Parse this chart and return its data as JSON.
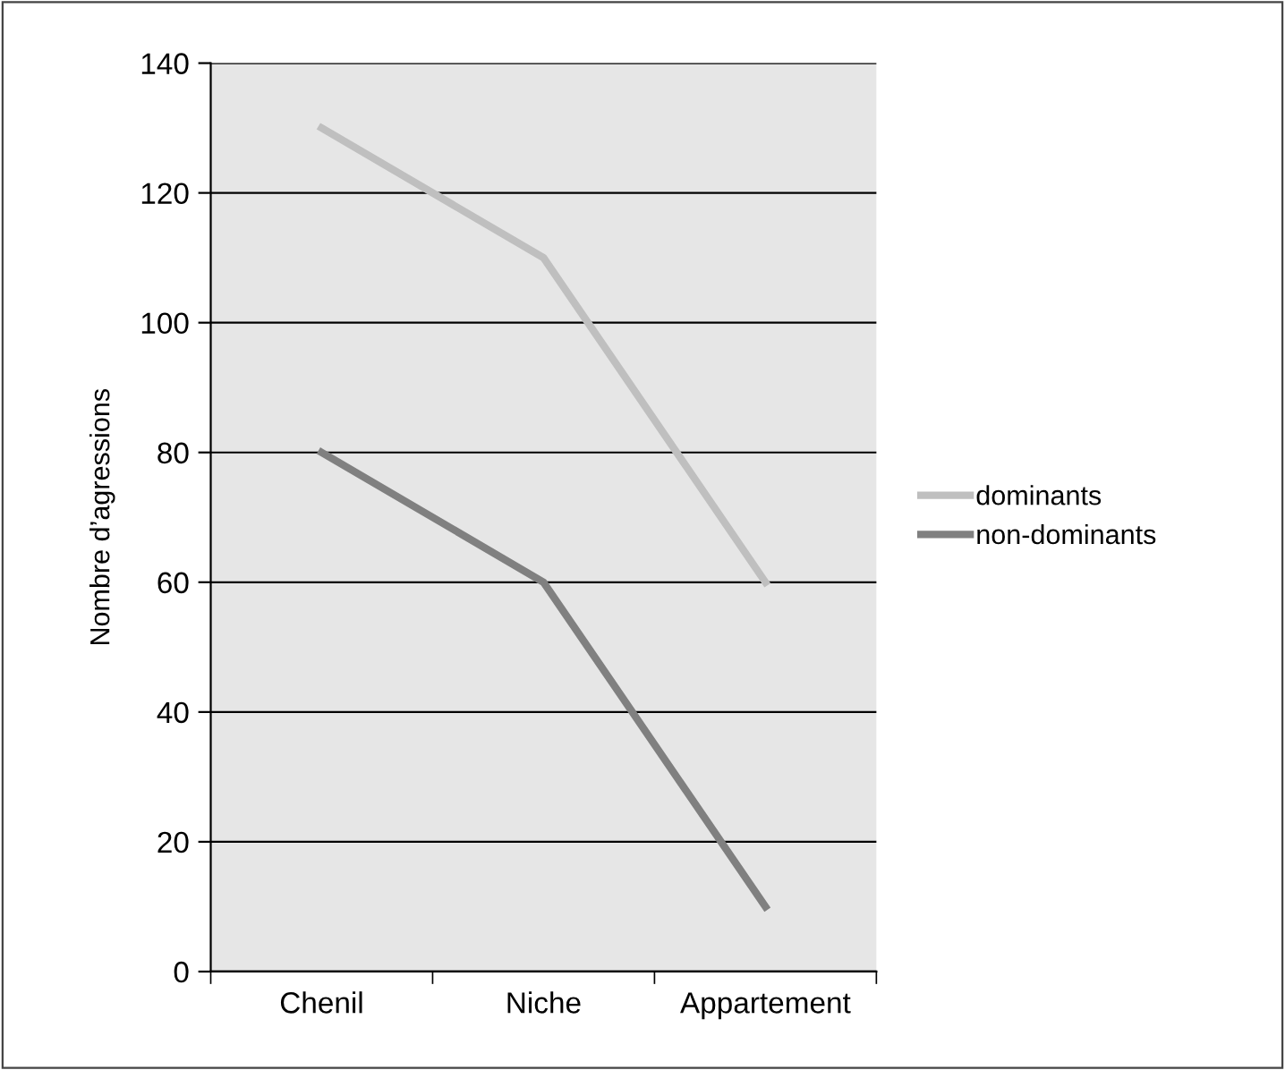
{
  "chart_data": {
    "type": "line",
    "ylabel": "Nombre d’agressions",
    "categories": [
      "Chenil",
      "Niche",
      "Appartement"
    ],
    "series": [
      {
        "name": "dominants",
        "color": "#bfbfbf",
        "values": [
          130,
          110,
          60
        ]
      },
      {
        "name": "non-dominants",
        "color": "#808080",
        "values": [
          80,
          60,
          10
        ]
      }
    ],
    "ylim": [
      0,
      140
    ],
    "yticks": [
      0,
      20,
      40,
      60,
      80,
      100,
      120,
      140
    ],
    "grid": "y",
    "legend": "right",
    "marker": "none",
    "line_style": "solid"
  }
}
